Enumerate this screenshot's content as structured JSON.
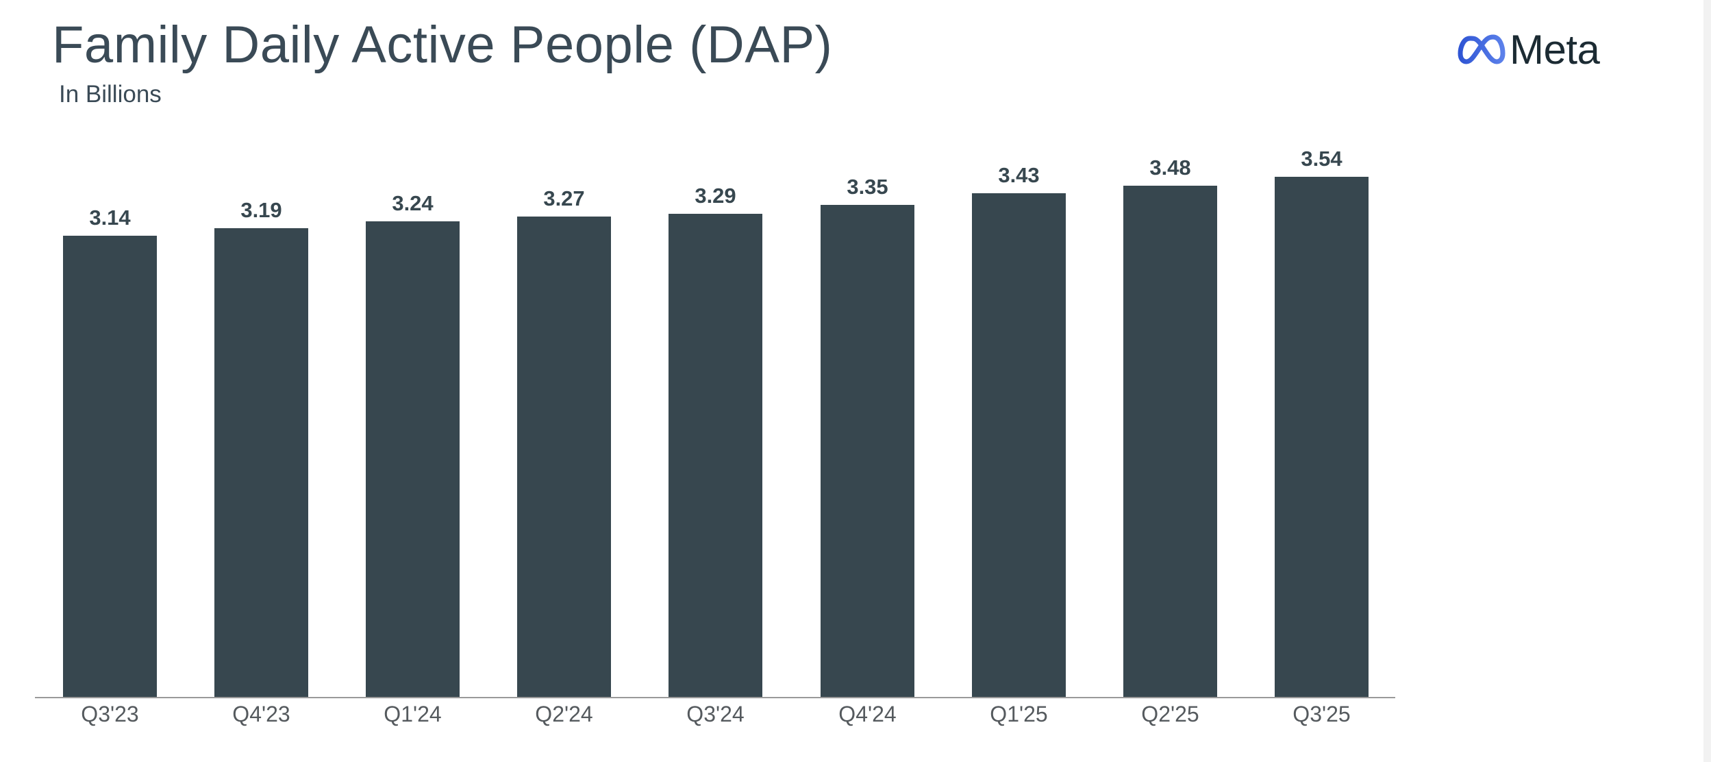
{
  "header": {
    "title": "Family Daily Active People (DAP)",
    "subtitle": "In Billions",
    "logo_text": "Meta",
    "logo_icon": "meta-infinity-icon"
  },
  "colors": {
    "bar": "#37474f",
    "title": "#3a4a56",
    "axis": "#9a9a9a",
    "logo_blue": "#3c5fd6"
  },
  "chart_data": {
    "type": "bar",
    "title": "Family Daily Active People (DAP)",
    "subtitle": "In Billions",
    "xlabel": "",
    "ylabel": "",
    "categories": [
      "Q3'23",
      "Q4'23",
      "Q1'24",
      "Q2'24",
      "Q3'24",
      "Q4'24",
      "Q1'25",
      "Q2'25",
      "Q3'25"
    ],
    "values": [
      3.14,
      3.19,
      3.24,
      3.27,
      3.29,
      3.35,
      3.43,
      3.48,
      3.54
    ],
    "value_labels": [
      "3.14",
      "3.19",
      "3.24",
      "3.27",
      "3.29",
      "3.35",
      "3.43",
      "3.48",
      "3.54"
    ],
    "ylim": [
      0,
      3.6
    ],
    "grid": false,
    "legend": "none",
    "data_labels": true
  }
}
